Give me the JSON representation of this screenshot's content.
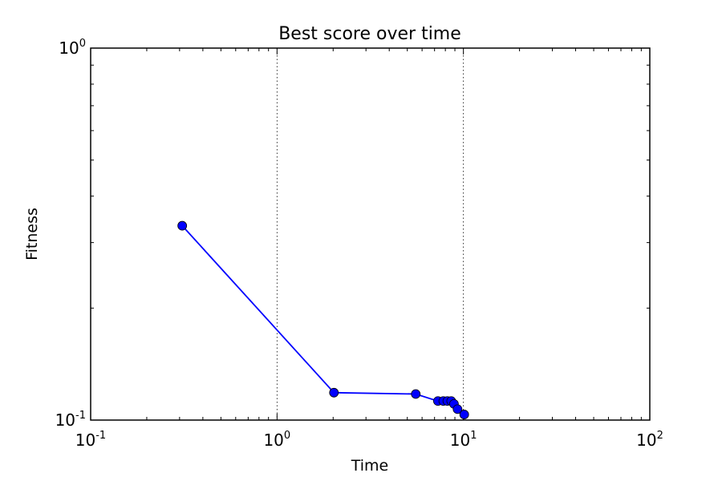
{
  "chart_data": {
    "type": "line",
    "title": "Best score over time",
    "xlabel": "Time",
    "ylabel": "Fitness",
    "xscale": "log",
    "yscale": "log",
    "xlim": [
      0.1,
      100
    ],
    "ylim": [
      0.1,
      1
    ],
    "grid": "x-major-dotted",
    "x_ticks": [
      {
        "base": "10",
        "exp": "-1",
        "value": 0.1
      },
      {
        "base": "10",
        "exp": "0",
        "value": 1
      },
      {
        "base": "10",
        "exp": "1",
        "value": 10
      },
      {
        "base": "10",
        "exp": "2",
        "value": 100
      }
    ],
    "y_ticks": [
      {
        "base": "10",
        "exp": "-1",
        "value": 0.1
      },
      {
        "base": "10",
        "exp": "0",
        "value": 1
      }
    ],
    "series": [
      {
        "color": "#0000ff",
        "marker": "circle",
        "x": [
          0.31,
          2.02,
          5.55,
          7.3,
          7.8,
          8.2,
          8.6,
          8.9,
          9.3,
          10.1
        ],
        "y": [
          0.333,
          0.1185,
          0.1175,
          0.1125,
          0.1125,
          0.1125,
          0.1125,
          0.1105,
          0.107,
          0.1035
        ]
      }
    ]
  }
}
